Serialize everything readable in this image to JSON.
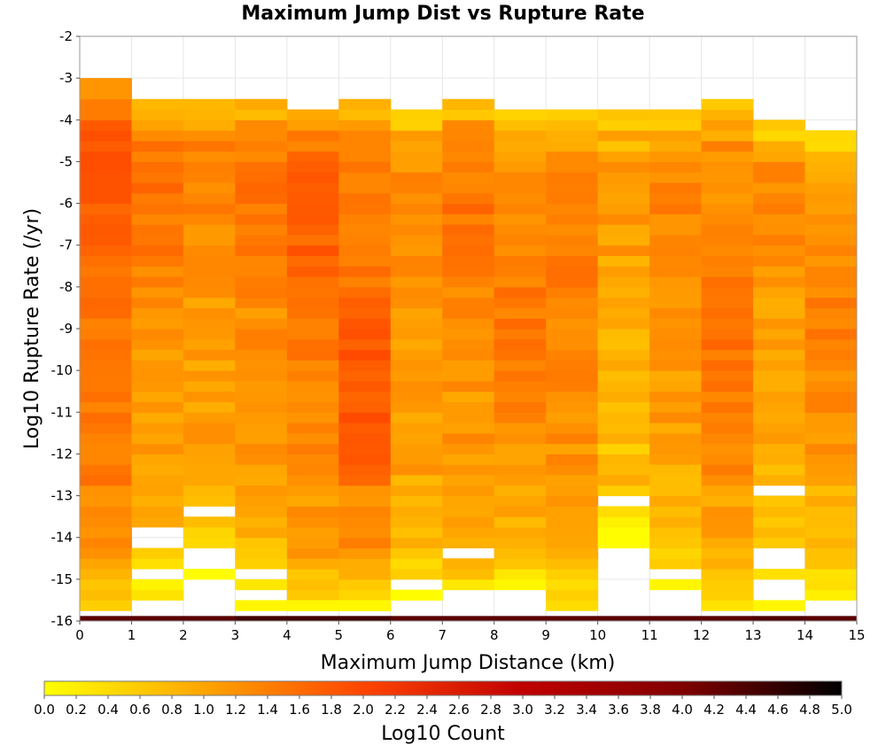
{
  "chart_data": {
    "type": "heatmap",
    "title": "Maximum Jump Dist vs Rupture Rate",
    "xlabel": "Maximum Jump Distance (km)",
    "ylabel": "Log10 Rupture Rate (/yr)",
    "xlim": [
      0,
      15
    ],
    "ylim": [
      -16,
      -2
    ],
    "x_ticks": [
      "0",
      "1",
      "2",
      "3",
      "4",
      "5",
      "6",
      "7",
      "8",
      "9",
      "10",
      "11",
      "12",
      "13",
      "14",
      "15"
    ],
    "y_ticks": [
      "-2",
      "-3",
      "-4",
      "-5",
      "-6",
      "-7",
      "-8",
      "-9",
      "-10",
      "-11",
      "-12",
      "-13",
      "-14",
      "-15",
      "-16"
    ],
    "grid": true,
    "x_bin_width": 1,
    "y_bin_height": 0.25,
    "colorbar": {
      "label": "Log10 Count",
      "range": [
        0,
        5
      ],
      "ticks": [
        "0.0",
        "0.2",
        "0.4",
        "0.6",
        "0.8",
        "1.0",
        "1.2",
        "1.4",
        "1.6",
        "1.8",
        "2.0",
        "2.2",
        "2.4",
        "2.6",
        "2.8",
        "3.0",
        "3.2",
        "3.4",
        "3.6",
        "3.8",
        "4.0",
        "4.2",
        "4.4",
        "4.6",
        "4.8",
        "5.0"
      ],
      "colors": [
        "#ffff00",
        "#ffa500",
        "#ff4500",
        "#c00000",
        "#800000",
        "#000000"
      ]
    },
    "columns": [
      {
        "x": 0,
        "y_top": -3.0,
        "y_bottom": -15.75,
        "base": 1.45,
        "amp": 0.15,
        "peak_y": -5.3,
        "peak_boost": 0.35
      },
      {
        "x": 1,
        "y_top": -3.5,
        "y_bottom": -15.5,
        "base": 1.1,
        "amp": 0.2,
        "peak_y": -6.0,
        "peak_boost": 0.4
      },
      {
        "x": 2,
        "y_top": -3.5,
        "y_bottom": -15.0,
        "base": 1.05,
        "amp": 0.2,
        "peak_y": -5.5,
        "peak_boost": 0.3
      },
      {
        "x": 3,
        "y_top": -3.5,
        "y_bottom": -15.25,
        "base": 1.15,
        "amp": 0.2,
        "peak_y": -6.0,
        "peak_boost": 0.35
      },
      {
        "x": 4,
        "y_top": -3.75,
        "y_bottom": -15.75,
        "base": 1.35,
        "amp": 0.2,
        "peak_y": -6.0,
        "peak_boost": 0.45
      },
      {
        "x": 5,
        "y_top": -3.5,
        "y_bottom": -15.75,
        "base": 1.4,
        "amp": 0.2,
        "peak_y": -10.5,
        "peak_boost": 0.4
      },
      {
        "x": 6,
        "y_top": -3.75,
        "y_bottom": -15.5,
        "base": 1.05,
        "amp": 0.2,
        "peak_y": -6.5,
        "peak_boost": 0.25
      },
      {
        "x": 7,
        "y_top": -3.5,
        "y_bottom": -15.75,
        "base": 1.15,
        "amp": 0.2,
        "peak_y": -6.3,
        "peak_boost": 0.35
      },
      {
        "x": 8,
        "y_top": -3.75,
        "y_bottom": -15.25,
        "base": 1.15,
        "amp": 0.2,
        "peak_y": -8.8,
        "peak_boost": 0.3
      },
      {
        "x": 9,
        "y_top": -3.75,
        "y_bottom": -15.75,
        "base": 1.2,
        "amp": 0.2,
        "peak_y": -7.2,
        "peak_boost": 0.2
      },
      {
        "x": 10,
        "y_top": -3.75,
        "y_bottom": -14.25,
        "base": 0.9,
        "amp": 0.25,
        "peak_y": -6.0,
        "peak_boost": 0.2
      },
      {
        "x": 11,
        "y_top": -3.75,
        "y_bottom": -15.25,
        "base": 1.1,
        "amp": 0.2,
        "peak_y": -6.0,
        "peak_boost": 0.25
      },
      {
        "x": 12,
        "y_top": -3.5,
        "y_bottom": -15.75,
        "base": 1.2,
        "amp": 0.2,
        "peak_y": -9.5,
        "peak_boost": 0.3
      },
      {
        "x": 13,
        "y_top": -4.0,
        "y_bottom": -15.25,
        "base": 1.0,
        "amp": 0.2,
        "peak_y": -6.0,
        "peak_boost": 0.25
      },
      {
        "x": 14,
        "y_top": -4.25,
        "y_bottom": -15.5,
        "base": 1.05,
        "amp": 0.2,
        "peak_y": -9.0,
        "peak_boost": 0.3
      }
    ],
    "gaps": [
      {
        "x": 1,
        "y": [
          -14.0,
          -14.25,
          -15.0
        ]
      },
      {
        "x": 2,
        "y": [
          -13.5,
          -14.5,
          -14.75,
          -15.25,
          -15.5,
          -15.75
        ]
      },
      {
        "x": 3,
        "y": [
          -15.0
        ]
      },
      {
        "x": 6,
        "y": [
          -15.25
        ]
      },
      {
        "x": 7,
        "y": [
          -14.5,
          -15.5,
          -15.75
        ]
      },
      {
        "x": 10,
        "y": [
          -13.25,
          -14.5,
          -14.75,
          -15.0,
          -15.25,
          -15.5,
          -15.75
        ]
      },
      {
        "x": 11,
        "y": [
          -15.0,
          -15.5,
          -15.75
        ]
      },
      {
        "x": 13,
        "y": [
          -13.0,
          -14.5,
          -14.75,
          -15.25,
          -15.5
        ]
      },
      {
        "x": 14,
        "y": []
      }
    ],
    "bottom_row": {
      "y": -16.0,
      "values": [
        4.3,
        4.3,
        4.3,
        4.5,
        4.5,
        4.5,
        4.3,
        4.3,
        4.3,
        4.3,
        4.3,
        4.3,
        4.3,
        4.4,
        4.3
      ]
    },
    "extra_cells": [
      {
        "x": 3,
        "y": -15.75,
        "value": 0.1
      },
      {
        "x": 4,
        "y": -15.75,
        "value": 0.1
      },
      {
        "x": 5,
        "y": -15.75,
        "value": 0.1
      },
      {
        "x": 13,
        "y": -15.75,
        "value": 0.1
      }
    ]
  }
}
